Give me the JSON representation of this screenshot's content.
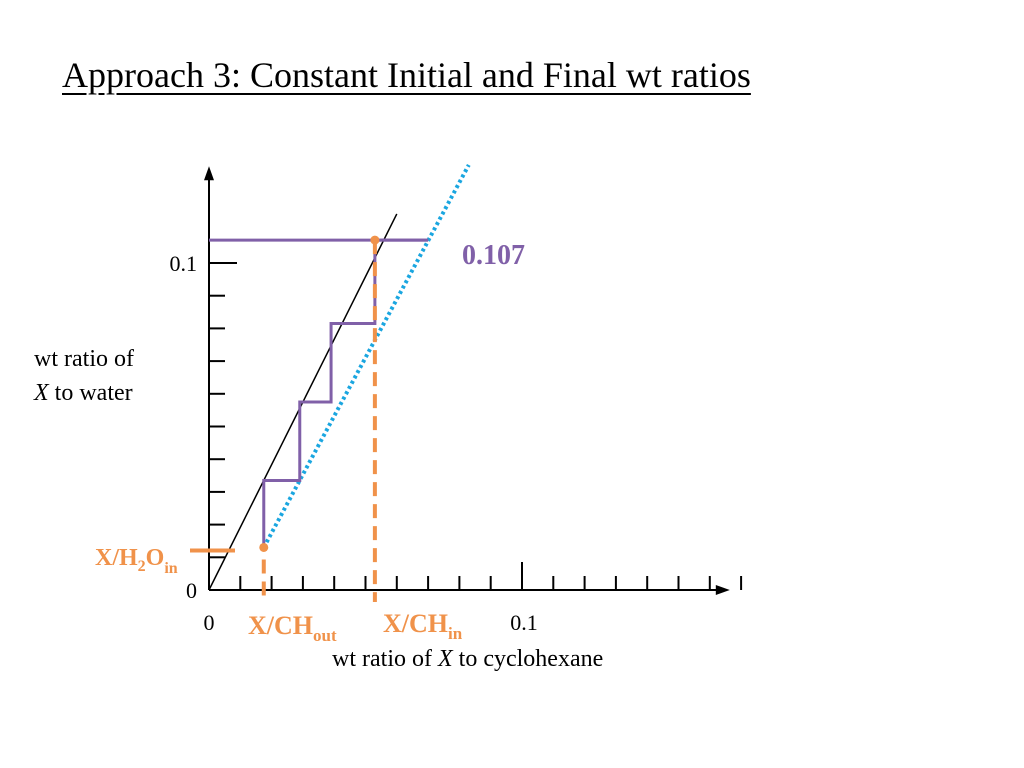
{
  "slide": {
    "title": "Approach 3: Constant Initial and Final wt ratios"
  },
  "colors": {
    "axis": "#000000",
    "equilibrium": "#000000",
    "operating": "#1aa6e0",
    "stages": "#8060a8",
    "marker": "#f0924a"
  },
  "chart_data": {
    "type": "line",
    "xlabel_prefix": "wt ratio of ",
    "xlabel_var": "X",
    "xlabel_suffix": " to cyclohexane",
    "ylabel_line1": "wt ratio of",
    "ylabel_var": "X",
    "ylabel_line2_suffix": " to water",
    "x_tick_labels": [
      {
        "value": 0,
        "label": "0"
      },
      {
        "value": 0.1,
        "label": "0.1"
      }
    ],
    "y_tick_labels": [
      {
        "value": 0,
        "label": "0"
      },
      {
        "value": 0.1,
        "label": "0.1"
      }
    ],
    "xlim": [
      0,
      0.16
    ],
    "ylim": [
      0,
      0.125
    ],
    "x_minor_step": 0.01,
    "y_minor_step": 0.01,
    "series": [
      {
        "key": "equilibrium",
        "points": [
          [
            0,
            0
          ],
          [
            0.06,
            0.115
          ]
        ]
      },
      {
        "key": "operating",
        "points": [
          [
            0.0175,
            0.013
          ],
          [
            0.083,
            0.13
          ]
        ]
      }
    ],
    "stages": [
      [
        0.0175,
        0.013
      ],
      [
        0.0175,
        0.0335
      ],
      [
        0.029,
        0.0335
      ],
      [
        0.029,
        0.0575
      ],
      [
        0.039,
        0.0575
      ],
      [
        0.039,
        0.0815
      ],
      [
        0.053,
        0.0815
      ],
      [
        0.053,
        0.107
      ],
      [
        0.07,
        0.107
      ]
    ],
    "top_line": {
      "x_from": 0,
      "x_to": 0.07,
      "y": 0.107
    },
    "annotations": {
      "y_final": {
        "value": 0.107,
        "label": "0.107"
      },
      "x_out": {
        "value": 0.0175,
        "label_main": "X/CH",
        "label_sub": "out"
      },
      "x_in": {
        "value": 0.053,
        "label_main": "X/CH",
        "label_sub": "in"
      },
      "y_in": {
        "value": 0.013,
        "label_main": "X/H",
        "label_sub2": "2",
        "label_mid": "O",
        "label_sub": "in"
      }
    }
  }
}
